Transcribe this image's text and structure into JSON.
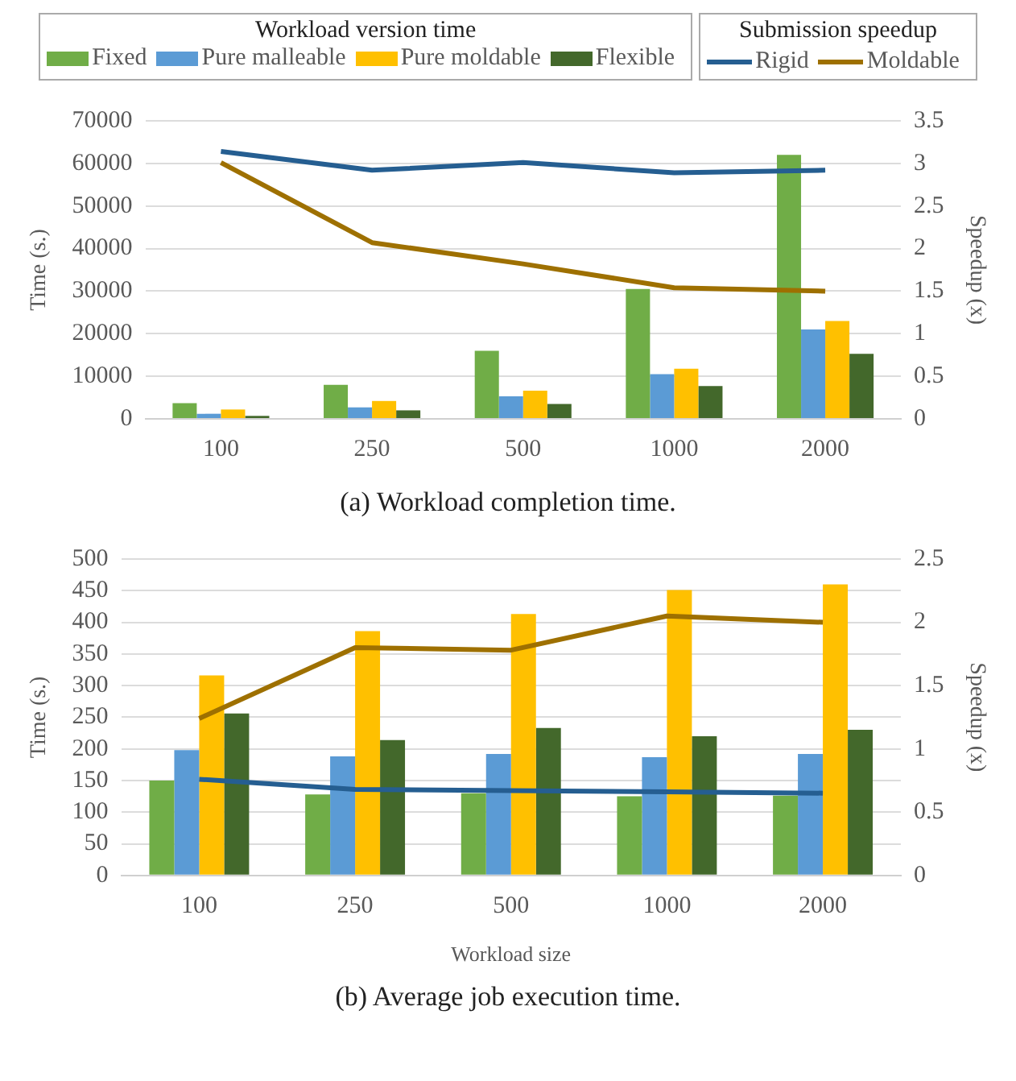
{
  "chart_data": [
    {
      "type": "bar",
      "title": "(a) Workload completion time.",
      "ylabel": "Time (s.)",
      "y2label": "Speedup (x)",
      "legend": "top",
      "legend_title": "Workload version time",
      "annotations": [
        "Submission speedup"
      ],
      "grid": "y",
      "categories": [
        "100",
        "250",
        "500",
        "1000",
        "2000"
      ],
      "ylim": [
        0,
        70000
      ],
      "yticks": [
        0,
        10000,
        20000,
        30000,
        40000,
        50000,
        60000,
        70000
      ],
      "y2lim": [
        0,
        3.5
      ],
      "y2ticks": [
        0,
        0.5,
        1,
        1.5,
        2,
        2.5,
        3,
        3.5
      ],
      "series": [
        {
          "name": "Fixed",
          "color": "#70ad47",
          "values": [
            3700,
            8000,
            16000,
            30500,
            62000
          ]
        },
        {
          "name": "Pure malleable",
          "color": "#5b9bd5",
          "values": [
            1200,
            2700,
            5300,
            10500,
            21000
          ]
        },
        {
          "name": "Pure moldable",
          "color": "#ffc000",
          "values": [
            2200,
            4200,
            6600,
            11800,
            23000
          ]
        },
        {
          "name": "Flexible",
          "color": "#43682b",
          "values": [
            700,
            2000,
            3500,
            7700,
            15300
          ]
        },
        {
          "name": "Rigid",
          "type": "line",
          "axis": "y2",
          "color": "#255e91",
          "values": [
            3.14,
            2.92,
            3.01,
            2.89,
            2.92
          ]
        },
        {
          "name": "Moldable",
          "type": "line",
          "axis": "y2",
          "color": "#9e7000",
          "values": [
            3.01,
            2.07,
            1.82,
            1.54,
            1.5
          ]
        }
      ]
    },
    {
      "type": "bar",
      "title": "(b) Average job execution time.",
      "xlabel": "Workload size",
      "ylabel": "Time (s.)",
      "y2label": "Speedup (x)",
      "grid": "y",
      "categories": [
        "100",
        "250",
        "500",
        "1000",
        "2000"
      ],
      "ylim": [
        0,
        500
      ],
      "yticks": [
        0,
        50,
        100,
        150,
        200,
        250,
        300,
        350,
        400,
        450,
        500
      ],
      "y2lim": [
        0,
        2.5
      ],
      "y2ticks": [
        0,
        0.5,
        1,
        1.5,
        2,
        2.5
      ],
      "series": [
        {
          "color": "#70ad47",
          "values": [
            150,
            128,
            130,
            125,
            126
          ]
        },
        {
          "color": "#5b9bd5",
          "values": [
            198,
            188,
            192,
            187,
            192
          ]
        },
        {
          "color": "#ffc000",
          "values": [
            316,
            386,
            413,
            451,
            460
          ]
        },
        {
          "color": "#43682b",
          "values": [
            256,
            214,
            233,
            220,
            230
          ]
        },
        {
          "type": "line",
          "axis": "y2",
          "color": "#255e91",
          "values": [
            0.76,
            0.68,
            0.67,
            0.66,
            0.65
          ]
        },
        {
          "type": "line",
          "axis": "y2",
          "color": "#9e7000",
          "values": [
            1.24,
            1.8,
            1.78,
            2.05,
            2.0
          ]
        }
      ]
    }
  ]
}
